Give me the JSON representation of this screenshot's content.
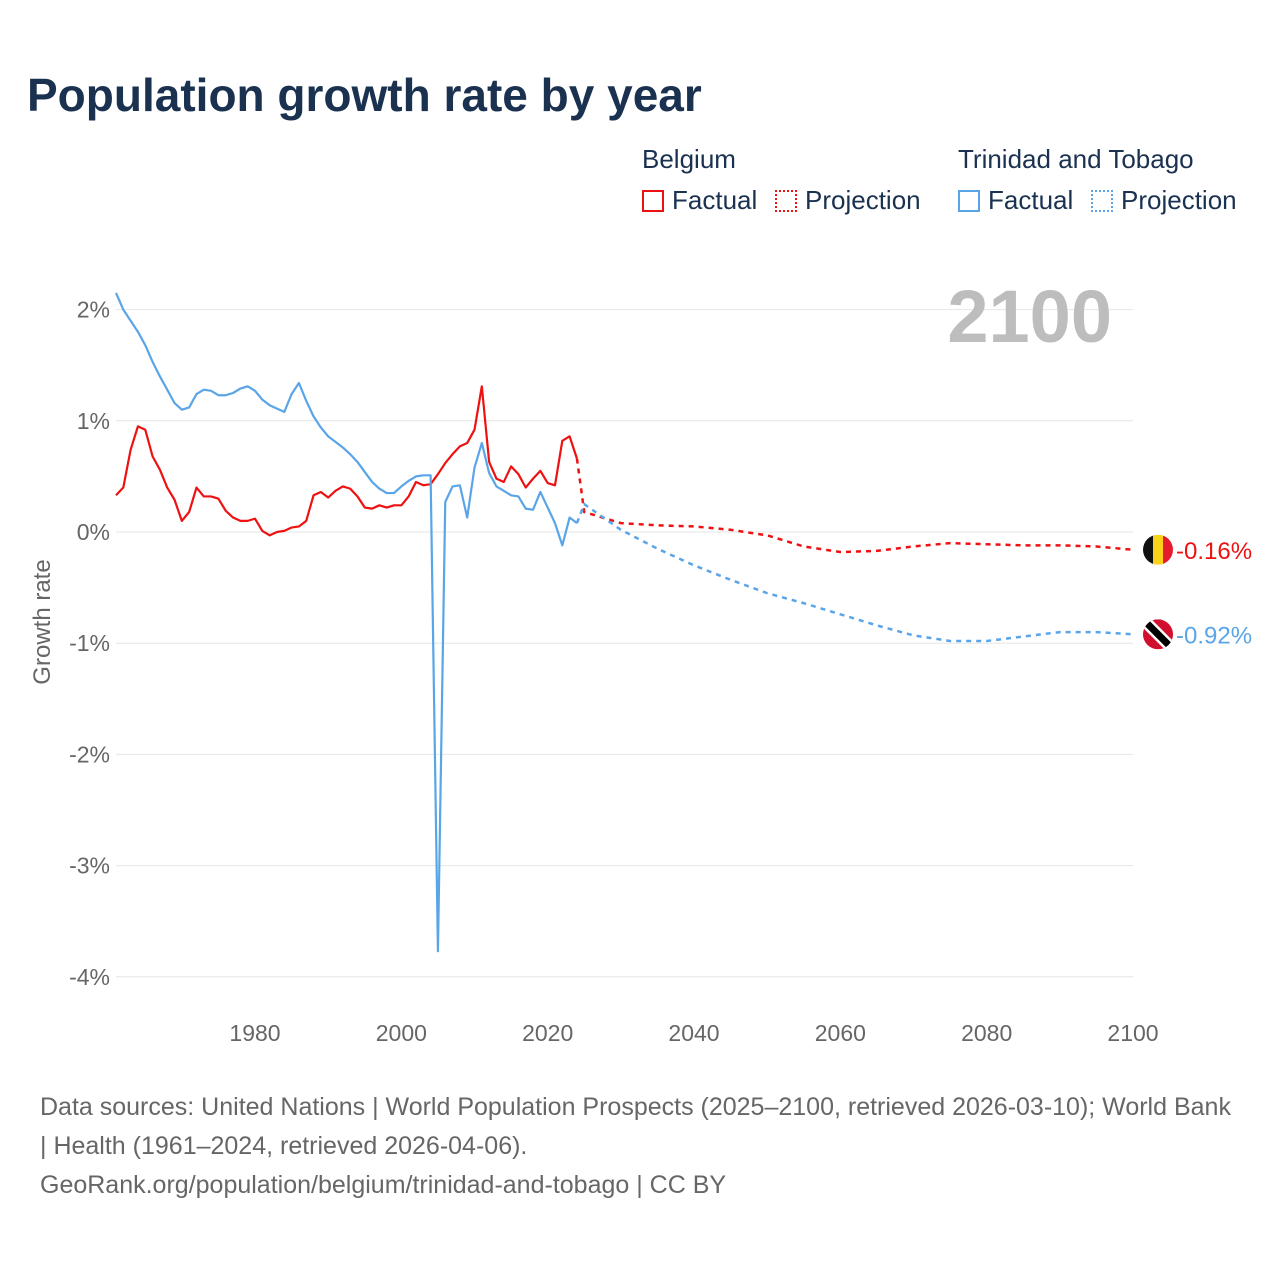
{
  "title": "Population growth rate by year",
  "legend": {
    "groups": [
      {
        "name": "Belgium",
        "factual": "Factual",
        "projection": "Projection",
        "color": "#ee1111"
      },
      {
        "name": "Trinidad and Tobago",
        "factual": "Factual",
        "projection": "Projection",
        "color": "#5aa5e8"
      }
    ]
  },
  "year_label": "2100",
  "footer": {
    "sources": "Data sources: United Nations | World Population Prospects (2025–2100, retrieved 2026-03-10); World Bank | Health (1961–2024, retrieved 2026-04-06).",
    "link": "GeoRank.org/population/belgium/trinidad-and-tobago | CC BY"
  },
  "chart_data": {
    "type": "line",
    "title": "Population growth rate by year",
    "ylabel": "Growth rate",
    "xlabel": "",
    "xlim": [
      1961,
      2100
    ],
    "ylim": [
      -4.3,
      2.3
    ],
    "xticks": [
      1980,
      2000,
      2020,
      2040,
      2060,
      2080,
      2100
    ],
    "yticks": [
      {
        "v": 2,
        "label": "2%"
      },
      {
        "v": 1,
        "label": "1%"
      },
      {
        "v": 0,
        "label": "0%"
      },
      {
        "v": -1,
        "label": "-1%"
      },
      {
        "v": -2,
        "label": "-2%"
      },
      {
        "v": -3,
        "label": "-3%"
      },
      {
        "v": -4,
        "label": "-4%"
      }
    ],
    "grid": true,
    "series": [
      {
        "name": "Belgium",
        "color": "#ee1111",
        "end_label": "-0.16%",
        "factual_start": 1961,
        "factual": [
          0.33,
          0.4,
          0.74,
          0.95,
          0.92,
          0.68,
          0.56,
          0.4,
          0.29,
          0.1,
          0.18,
          0.4,
          0.32,
          0.32,
          0.3,
          0.19,
          0.13,
          0.1,
          0.1,
          0.12,
          0.01,
          -0.03,
          0.0,
          0.01,
          0.04,
          0.05,
          0.1,
          0.33,
          0.36,
          0.31,
          0.37,
          0.41,
          0.39,
          0.32,
          0.22,
          0.21,
          0.24,
          0.22,
          0.24,
          0.24,
          0.32,
          0.45,
          0.42,
          0.43,
          0.52,
          0.62,
          0.7,
          0.77,
          0.8,
          0.92,
          1.31,
          0.63,
          0.48,
          0.45,
          0.59,
          0.52,
          0.4,
          0.48,
          0.55,
          0.44,
          0.42,
          0.82,
          0.86,
          0.66
        ],
        "projection_years": [
          2025,
          2030,
          2035,
          2040,
          2045,
          2050,
          2055,
          2060,
          2065,
          2070,
          2075,
          2080,
          2085,
          2090,
          2095,
          2100
        ],
        "projection": [
          0.18,
          0.08,
          0.06,
          0.05,
          0.02,
          -0.03,
          -0.13,
          -0.18,
          -0.17,
          -0.13,
          -0.1,
          -0.11,
          -0.12,
          -0.12,
          -0.13,
          -0.16
        ]
      },
      {
        "name": "Trinidad and Tobago",
        "color": "#5aa5e8",
        "end_label": "-0.92%",
        "factual_start": 1961,
        "factual": [
          2.15,
          2.0,
          1.9,
          1.8,
          1.68,
          1.53,
          1.4,
          1.28,
          1.16,
          1.1,
          1.12,
          1.24,
          1.28,
          1.27,
          1.23,
          1.23,
          1.25,
          1.29,
          1.31,
          1.27,
          1.19,
          1.14,
          1.11,
          1.08,
          1.24,
          1.34,
          1.18,
          1.04,
          0.94,
          0.86,
          0.81,
          0.76,
          0.7,
          0.63,
          0.54,
          0.45,
          0.39,
          0.35,
          0.35,
          0.41,
          0.46,
          0.5,
          0.51,
          0.51,
          -3.77,
          0.27,
          0.41,
          0.42,
          0.13,
          0.58,
          0.8,
          0.53,
          0.41,
          0.37,
          0.33,
          0.32,
          0.21,
          0.2,
          0.36,
          0.22,
          0.08,
          -0.12,
          0.13,
          0.08
        ],
        "projection_years": [
          2025,
          2030,
          2035,
          2040,
          2045,
          2050,
          2055,
          2060,
          2065,
          2070,
          2075,
          2080,
          2085,
          2090,
          2095,
          2100
        ],
        "projection": [
          0.25,
          0.02,
          -0.15,
          -0.3,
          -0.43,
          -0.55,
          -0.64,
          -0.74,
          -0.84,
          -0.93,
          -0.98,
          -0.98,
          -0.94,
          -0.9,
          -0.9,
          -0.92
        ]
      }
    ]
  }
}
